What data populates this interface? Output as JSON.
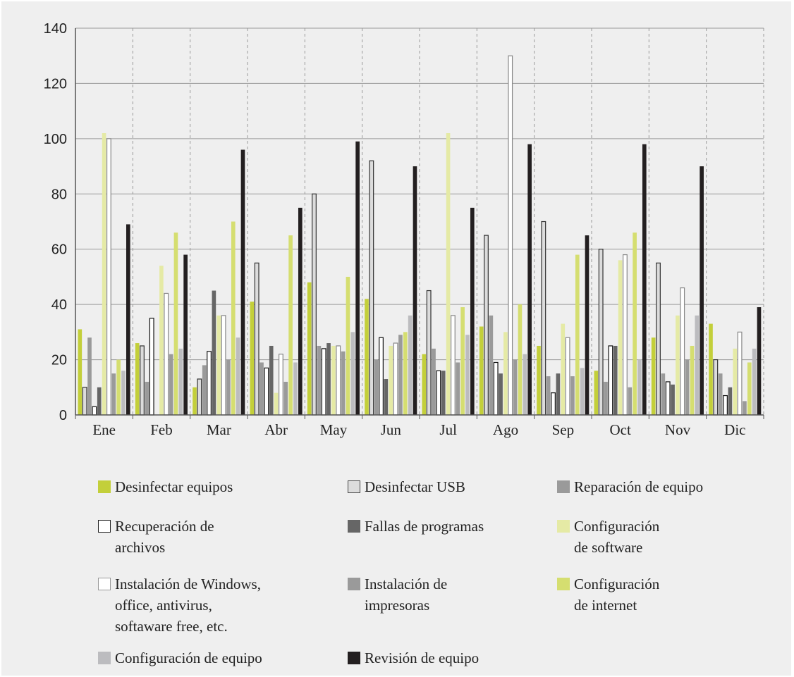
{
  "chart_data": {
    "type": "bar",
    "categories": [
      "Ene",
      "Feb",
      "Mar",
      "Abr",
      "May",
      "Jun",
      "Jul",
      "Ago",
      "Sep",
      "Oct",
      "Nov",
      "Dic"
    ],
    "ylim": [
      0,
      140
    ],
    "yticks": [
      "0",
      "20",
      "40",
      "60",
      "80",
      "100",
      "120",
      "140"
    ],
    "grid": "horizontal solid, vertical dashed",
    "legend_position": "bottom",
    "series": [
      {
        "name": "Desinfectar equipos",
        "color": "#c3cf3a",
        "values": [
          31,
          26,
          10,
          41,
          48,
          42,
          22,
          32,
          25,
          16,
          28,
          33
        ]
      },
      {
        "name": "Desinfectar USB",
        "color": "#dcdcdc",
        "values": [
          10,
          25,
          13,
          55,
          80,
          92,
          45,
          65,
          70,
          60,
          55,
          20
        ]
      },
      {
        "name": "Reparación de equipo",
        "color": "#9a9a9a",
        "values": [
          28,
          12,
          18,
          19,
          25,
          20,
          24,
          36,
          14,
          12,
          15,
          15
        ]
      },
      {
        "name": "Recuperación de\narchivos",
        "color": "#ffffff",
        "values": [
          3,
          35,
          23,
          17,
          24,
          28,
          16,
          19,
          8,
          25,
          12,
          7
        ]
      },
      {
        "name": "Fallas de programas",
        "color": "#666666",
        "values": [
          10,
          0,
          45,
          25,
          26,
          13,
          16,
          15,
          15,
          25,
          11,
          10
        ]
      },
      {
        "name": "Configuración\nde software",
        "color": "#e5eaa5",
        "values": [
          102,
          54,
          36,
          8,
          25,
          25,
          102,
          30,
          33,
          56,
          36,
          24
        ]
      },
      {
        "name": "Instalación de Windows,\noffice, antivirus,\nsoftaware free, etc.",
        "color": "#ffffff",
        "values": [
          100,
          44,
          36,
          22,
          25,
          26,
          36,
          130,
          28,
          58,
          46,
          30
        ]
      },
      {
        "name": "Instalación de\nimpresoras",
        "color": "#9a9a9a",
        "values": [
          15,
          22,
          20,
          12,
          23,
          29,
          19,
          20,
          14,
          10,
          20,
          5
        ]
      },
      {
        "name": "Configuración\nde internet",
        "color": "#d5de70",
        "values": [
          20,
          66,
          70,
          65,
          50,
          30,
          39,
          40,
          58,
          66,
          25,
          19
        ]
      },
      {
        "name": "Configuración de equipo",
        "color": "#bcbcbf",
        "values": [
          16,
          24,
          28,
          19,
          30,
          36,
          29,
          22,
          17,
          20,
          36,
          24
        ]
      },
      {
        "name": "Revisión de equipo",
        "color": "#231f20",
        "values": [
          69,
          58,
          96,
          75,
          99,
          90,
          75,
          98,
          65,
          98,
          90,
          39
        ]
      }
    ]
  },
  "legend": [
    {
      "label": "Desinfectar equipos",
      "color": "#c3cf3a",
      "border": "none"
    },
    {
      "label": "Desinfectar USB",
      "color": "#dcdcdc",
      "border": "#444444"
    },
    {
      "label": "Reparación de equipo",
      "color": "#9a9a9a",
      "border": "none"
    },
    {
      "label": "Recuperación de\narchivos",
      "color": "#ffffff",
      "border": "#222222"
    },
    {
      "label": "Fallas de programas",
      "color": "#666666",
      "border": "none"
    },
    {
      "label": "Configuración\nde software",
      "color": "#e5eaa5",
      "border": "none"
    },
    {
      "label": "Instalación de Windows,\noffice, antivirus,\nsoftaware free, etc.",
      "color": "#ffffff",
      "border": "#999999"
    },
    {
      "label": "Instalación de\nimpresoras",
      "color": "#9a9a9a",
      "border": "none"
    },
    {
      "label": "Configuración\nde internet",
      "color": "#d5de70",
      "border": "none"
    },
    {
      "label": "Configuración de equipo",
      "color": "#bcbcbf",
      "border": "none"
    },
    {
      "label": "Revisión de equipo",
      "color": "#231f20",
      "border": "none"
    }
  ]
}
